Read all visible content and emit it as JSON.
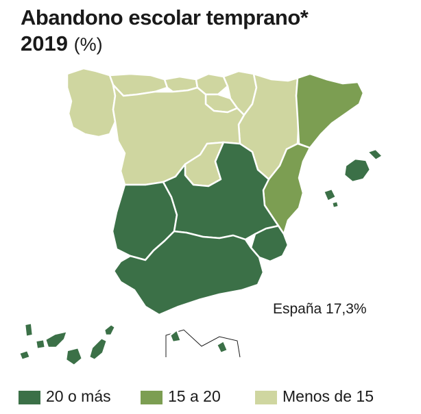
{
  "title": {
    "line1": "Abandono escolar temprano*",
    "year": "2019",
    "unit": "(%)"
  },
  "total": "España 17,3%",
  "colors": {
    "high": "#3b7047",
    "mid": "#7c9e52",
    "low": "#cfd6a0"
  },
  "legend": [
    {
      "label": "20 o más",
      "color": "#3b7047"
    },
    {
      "label": "15 a 20",
      "color": "#7c9e52"
    },
    {
      "label": "Menos de 15",
      "color": "#cfd6a0"
    }
  ],
  "regions": [
    {
      "id": "galicia",
      "category": "low"
    },
    {
      "id": "asturias",
      "category": "low"
    },
    {
      "id": "cantabria",
      "category": "low"
    },
    {
      "id": "pais-vasco",
      "category": "low"
    },
    {
      "id": "navarra",
      "category": "low"
    },
    {
      "id": "la-rioja",
      "category": "low"
    },
    {
      "id": "aragon",
      "category": "low"
    },
    {
      "id": "castilla-leon",
      "category": "low"
    },
    {
      "id": "madrid",
      "category": "low"
    },
    {
      "id": "cataluna",
      "category": "mid"
    },
    {
      "id": "valencia",
      "category": "mid"
    },
    {
      "id": "baleares",
      "category": "high"
    },
    {
      "id": "extremadura",
      "category": "high"
    },
    {
      "id": "castilla-la-mancha",
      "category": "high"
    },
    {
      "id": "andalucia",
      "category": "high"
    },
    {
      "id": "murcia",
      "category": "high"
    },
    {
      "id": "canarias",
      "category": "high"
    },
    {
      "id": "ceuta",
      "category": "high"
    },
    {
      "id": "melilla",
      "category": "high"
    }
  ]
}
